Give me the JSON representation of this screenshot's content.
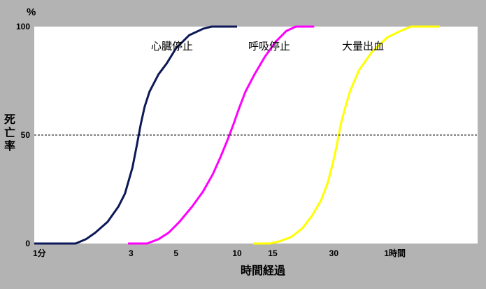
{
  "chart_data": {
    "type": "line",
    "x_scale": "log",
    "x_unit": "minutes",
    "y_unit_label": "%",
    "ylabel": "死亡率",
    "xlabel": "時間経過",
    "ylim": [
      0,
      100
    ],
    "y_ticks": [
      {
        "value": 0,
        "label": "0"
      },
      {
        "value": 50,
        "label": "50"
      },
      {
        "value": 100,
        "label": "100"
      }
    ],
    "x_ticks": [
      {
        "value": 1,
        "label": "1分"
      },
      {
        "value": 3,
        "label": "3"
      },
      {
        "value": 5,
        "label": "5"
      },
      {
        "value": 10,
        "label": "10"
      },
      {
        "value": 15,
        "label": "15"
      },
      {
        "value": 30,
        "label": "30"
      },
      {
        "value": 60,
        "label": "1時間"
      }
    ],
    "reference_line": {
      "y": 50,
      "style": "dashed"
    },
    "series": [
      {
        "name": "心臓停止",
        "color": "#0d1957",
        "points": [
          [
            1.0,
            0
          ],
          [
            1.6,
            0
          ],
          [
            1.8,
            2
          ],
          [
            2.0,
            5
          ],
          [
            2.3,
            10
          ],
          [
            2.6,
            17
          ],
          [
            2.8,
            23
          ],
          [
            3.05,
            35
          ],
          [
            3.2,
            45
          ],
          [
            3.35,
            55
          ],
          [
            3.5,
            63
          ],
          [
            3.7,
            70
          ],
          [
            4.1,
            78
          ],
          [
            4.5,
            83
          ],
          [
            5.0,
            90
          ],
          [
            5.8,
            96
          ],
          [
            6.8,
            99
          ],
          [
            7.5,
            100
          ],
          [
            10.0,
            100
          ]
        ]
      },
      {
        "name": "呼吸停止",
        "color": "#ff00ff",
        "points": [
          [
            2.9,
            0
          ],
          [
            3.6,
            0
          ],
          [
            4.1,
            2
          ],
          [
            4.6,
            5
          ],
          [
            5.2,
            10
          ],
          [
            6.0,
            17
          ],
          [
            6.8,
            24
          ],
          [
            7.6,
            32
          ],
          [
            8.3,
            40
          ],
          [
            9.0,
            48
          ],
          [
            9.6,
            55
          ],
          [
            10.2,
            62
          ],
          [
            11.0,
            70
          ],
          [
            12.2,
            78
          ],
          [
            13.7,
            86
          ],
          [
            15.5,
            93
          ],
          [
            17.5,
            98
          ],
          [
            19.5,
            100
          ],
          [
            24.0,
            100
          ]
        ]
      },
      {
        "name": "大量出血",
        "color": "#ffff00",
        "points": [
          [
            12.0,
            0
          ],
          [
            14.5,
            0
          ],
          [
            16.2,
            1
          ],
          [
            18.5,
            3
          ],
          [
            21.0,
            7
          ],
          [
            23.5,
            13
          ],
          [
            26.0,
            20
          ],
          [
            28.0,
            28
          ],
          [
            29.5,
            36
          ],
          [
            31.0,
            45
          ],
          [
            32.5,
            55
          ],
          [
            34.0,
            62
          ],
          [
            36.0,
            70
          ],
          [
            40.0,
            80
          ],
          [
            46.0,
            88
          ],
          [
            55.0,
            95
          ],
          [
            64.0,
            98
          ],
          [
            72.0,
            100
          ],
          [
            100.0,
            100
          ]
        ]
      }
    ],
    "series_label_positions": [
      "inside-plot-top-left",
      "inside-plot-top-center",
      "inside-plot-top-right"
    ],
    "colors": {
      "background": "#b3b3b3",
      "plot_background": "#ffffff"
    }
  }
}
